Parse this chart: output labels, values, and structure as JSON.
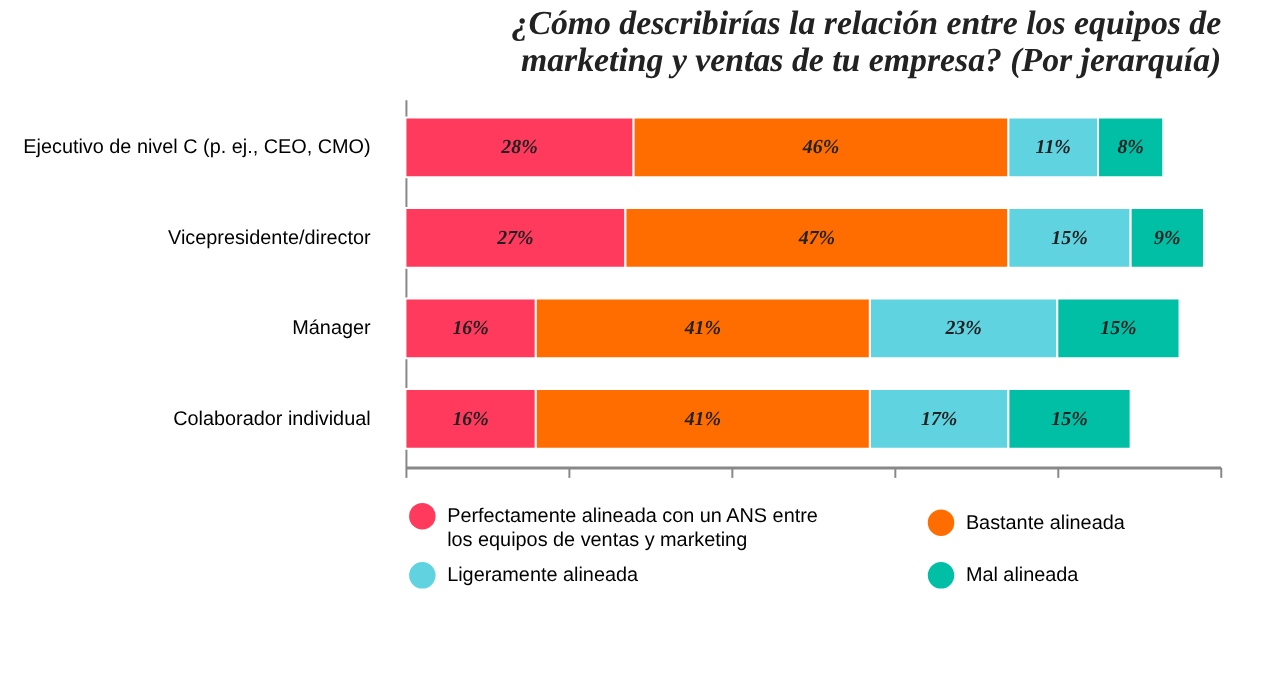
{
  "chart_data": {
    "type": "bar",
    "orientation": "horizontal",
    "stacked": true,
    "title": [
      "¿Cómo describirías la relación entre los equipos de",
      "marketing y ventas de tu empresa? (Por jerarquía)"
    ],
    "categories": [
      "Ejecutivo de nivel C (p. ej., CEO, CMO)",
      "Vicepresidente/director",
      "Mánager",
      "Colaborador individual"
    ],
    "series": [
      {
        "name": "Perfectamente alineada con un ANS entre los equipos de ventas y marketing",
        "color": "#ff3a5c",
        "values": [
          28,
          27,
          16,
          16
        ],
        "value_labels": [
          "28%",
          "27%",
          "16%",
          "16%"
        ]
      },
      {
        "name": "Bastante alineada",
        "color": "#ff6d00",
        "values": [
          46,
          47,
          41,
          41
        ],
        "value_labels": [
          "46%",
          "47%",
          "41%",
          "41%"
        ]
      },
      {
        "name": "Ligeramente alineada",
        "color": "#5fd3e0",
        "values": [
          11,
          15,
          23,
          17
        ],
        "value_labels": [
          "11%",
          "15%",
          "23%",
          "17%"
        ]
      },
      {
        "name": "Mal alineada",
        "color": "#00bfa5",
        "values": [
          8,
          9,
          15,
          15
        ],
        "value_labels": [
          "8%",
          "9%",
          "15%",
          "15%"
        ]
      }
    ],
    "xlim": [
      0,
      100
    ],
    "xticks": [
      {
        "value": 0,
        "label": null
      },
      {
        "value": 20,
        "label": null
      },
      {
        "value": 40,
        "label": null
      },
      {
        "value": 60,
        "label": null
      },
      {
        "value": 80,
        "label": null
      },
      {
        "value": 100,
        "label": null
      }
    ],
    "tick_labels": "y",
    "grid": false,
    "legend": "bottom"
  }
}
